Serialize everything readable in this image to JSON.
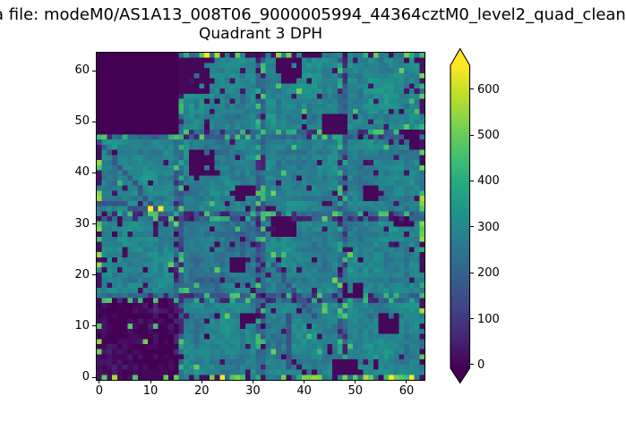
{
  "figure": {
    "suptitle": "a file: modeM0/AS1A13_008T06_9000005994_44364cztM0_level2_quad_clean",
    "axes_title": "Quadrant 3 DPH",
    "background_color": "#ffffff",
    "text_color": "#000000"
  },
  "chart_data": {
    "type": "heatmap",
    "title": "Quadrant 3 DPH",
    "xlabel": "",
    "ylabel": "",
    "grid_shape": [
      64,
      64
    ],
    "x_range": [
      -0.5,
      63.5
    ],
    "y_range": [
      -0.5,
      63.5
    ],
    "origin": "lower",
    "grid": false,
    "x_ticks": [
      0,
      10,
      20,
      30,
      40,
      50,
      60
    ],
    "y_ticks": [
      0,
      10,
      20,
      30,
      40,
      50,
      60
    ],
    "colormap": "viridis",
    "viridis_stops": [
      "#440154",
      "#482475",
      "#414487",
      "#355f8d",
      "#2a788e",
      "#21918c",
      "#22a884",
      "#44bf70",
      "#7ad151",
      "#bddf26",
      "#fde725"
    ],
    "colorbar": {
      "position": "right",
      "extend": "both",
      "ticks": [
        0,
        100,
        200,
        300,
        400,
        500,
        600
      ],
      "vmin": -8,
      "vmax": 652
    },
    "description": "64x64 CZT detector plane histogram (DPH) of counts per pixel for Quadrant 3. Field of mostly ~250-320 counts (teal) arranged in a 4x4 grid of 16x16 detector modules with visible module-edge structure, scattered dead pixels (~0 counts, dark purple), a completely dead 16x16 module in the upper-left corner (x 0-15, y 48-63), bright green edge pixels (~400-550) along the outer borders, and a few hot pixels near ~650 counts (yellow).",
    "features": {
      "module_grid": {
        "cols": 4,
        "rows": 4,
        "module_size": 16
      },
      "module_means": [
        [
          300,
          290,
          295,
          300
        ],
        [
          295,
          280,
          285,
          280
        ],
        [
          300,
          250,
          285,
          290
        ],
        [
          2,
          290,
          285,
          295
        ]
      ],
      "typical_value": 290,
      "dead_module": {
        "x": 0,
        "y": 48,
        "w": 16,
        "h": 16
      },
      "dead_pixel_fraction": 0.05,
      "dead_clusters": [
        [
          16,
          56,
          6,
          7
        ],
        [
          35,
          58,
          5,
          5
        ],
        [
          44,
          48,
          5,
          4
        ],
        [
          34,
          28,
          5,
          4
        ],
        [
          27,
          35,
          4,
          3
        ],
        [
          18,
          40,
          5,
          5
        ],
        [
          46,
          1,
          5,
          3
        ],
        [
          55,
          9,
          4,
          4
        ],
        [
          8,
          0,
          5,
          2
        ],
        [
          26,
          21,
          3,
          3
        ],
        [
          58,
          30,
          4,
          2
        ],
        [
          52,
          35,
          3,
          3
        ],
        [
          40,
          63,
          4,
          1
        ],
        [
          28,
          11,
          3,
          2
        ],
        [
          60,
          46,
          3,
          3
        ],
        [
          48,
          16,
          4,
          3
        ]
      ],
      "streak_segments": [
        [
          0,
          46,
          11,
          33
        ],
        [
          0,
          34,
          10,
          33
        ],
        [
          34,
          22,
          42,
          12
        ],
        [
          37,
          2,
          37,
          12
        ]
      ],
      "hot_pixels": [
        [
          10,
          33
        ],
        [
          12,
          33
        ],
        [
          21,
          63
        ],
        [
          24,
          0
        ],
        [
          57,
          0
        ],
        [
          61,
          0
        ]
      ],
      "hot_value": 648
    },
    "render_seed": 1337
  }
}
